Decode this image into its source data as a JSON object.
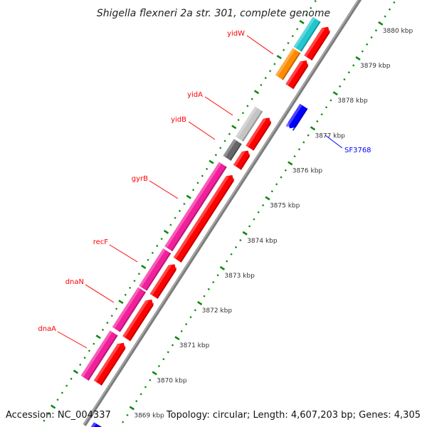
{
  "title": "Shigella flexneri 2a str. 301, complete genome",
  "footer": {
    "accession": "Accession: NC_004337",
    "summary": "Topology: circular; Length: 4,607,203 bp; Genes: 4,305"
  },
  "colors": {
    "backbone": "#8c8c8c",
    "tick": "#0a8a0a",
    "forward_label": "#ff0000",
    "reverse_label": "#0000ff"
  },
  "ticks": {
    "unit": "kbp",
    "labels": [
      "3869 kbp",
      "3870 kbp",
      "3871 kbp",
      "3872 kbp",
      "3873 kbp",
      "3874 kbp",
      "3875 kbp",
      "3876 kbp",
      "3877 kbp",
      "3878 kbp",
      "3879 kbp",
      "3880 kbp"
    ],
    "major_kbp": [
      3869,
      3870,
      3871,
      3872,
      3873,
      3874,
      3875,
      3876,
      3877,
      3878,
      3879,
      3880
    ],
    "minor_step_kbp": 0.2
  },
  "features": [
    {
      "label": "dnaA",
      "track": "forward",
      "strand": "+",
      "start_kbp": 3869.06,
      "end_kbp": 3870.21,
      "color": "#ff0000"
    },
    {
      "label": "dnaN",
      "track": "forward",
      "strand": "+",
      "start_kbp": 3870.33,
      "end_kbp": 3871.45,
      "color": "#ff0000"
    },
    {
      "label": "recF",
      "track": "forward",
      "strand": "+",
      "start_kbp": 3871.54,
      "end_kbp": 3872.46,
      "color": "#ff0000"
    },
    {
      "label": "gyrB",
      "track": "forward",
      "strand": "+",
      "start_kbp": 3872.58,
      "end_kbp": 3875.01,
      "color": "#ff0000"
    },
    {
      "label": "yidB",
      "track": "forward",
      "strand": "+",
      "start_kbp": 3875.23,
      "end_kbp": 3875.71,
      "color": "#ff0000"
    },
    {
      "label": "yidA",
      "track": "forward",
      "strand": "+",
      "start_kbp": 3875.78,
      "end_kbp": 3876.65,
      "color": "#ff0000"
    },
    {
      "label": "yidW",
      "track": "forward",
      "strand": "+",
      "start_kbp": 3877.54,
      "end_kbp": 3878.29,
      "color": "#ff0000"
    },
    {
      "label": "",
      "track": "forward",
      "strand": "+",
      "start_kbp": 3878.36,
      "end_kbp": 3879.25,
      "color": "#ff0000"
    },
    {
      "label": "SF3768",
      "track": "reverse",
      "strand": "-",
      "start_kbp": 3876.7,
      "end_kbp": 3877.33,
      "color": "#0000ff"
    },
    {
      "label": "",
      "track": "reverse",
      "strand": "-",
      "start_kbp": 3867.5,
      "end_kbp": 3868.22,
      "color": "#0000ff"
    },
    {
      "label": "",
      "track": "cog",
      "strand": "",
      "start_kbp": 3868.99,
      "end_kbp": 3870.28,
      "color": "#f21f9c"
    },
    {
      "label": "",
      "track": "cog",
      "strand": "",
      "start_kbp": 3870.38,
      "end_kbp": 3871.52,
      "color": "#f21f9c"
    },
    {
      "label": "",
      "track": "cog",
      "strand": "",
      "start_kbp": 3871.56,
      "end_kbp": 3872.63,
      "color": "#f21f9c"
    },
    {
      "label": "",
      "track": "cog",
      "strand": "",
      "start_kbp": 3872.69,
      "end_kbp": 3875.1,
      "color": "#f21f9c"
    },
    {
      "label": "",
      "track": "cog",
      "strand": "",
      "start_kbp": 3875.28,
      "end_kbp": 3875.76,
      "color": "#666666"
    },
    {
      "label": "",
      "track": "cog",
      "strand": "",
      "start_kbp": 3875.83,
      "end_kbp": 3876.69,
      "color": "#c4c4c4"
    },
    {
      "label": "",
      "track": "cog",
      "strand": "",
      "start_kbp": 3877.59,
      "end_kbp": 3878.36,
      "color": "#ff8c00"
    },
    {
      "label": "",
      "track": "cog",
      "strand": "",
      "start_kbp": 3878.4,
      "end_kbp": 3879.25,
      "color": "#22c6cf"
    },
    {
      "label": "",
      "track": "outer",
      "strand": "",
      "start_kbp": 3867.5,
      "end_kbp": 3868.15,
      "color": "#f08a8a"
    }
  ]
}
